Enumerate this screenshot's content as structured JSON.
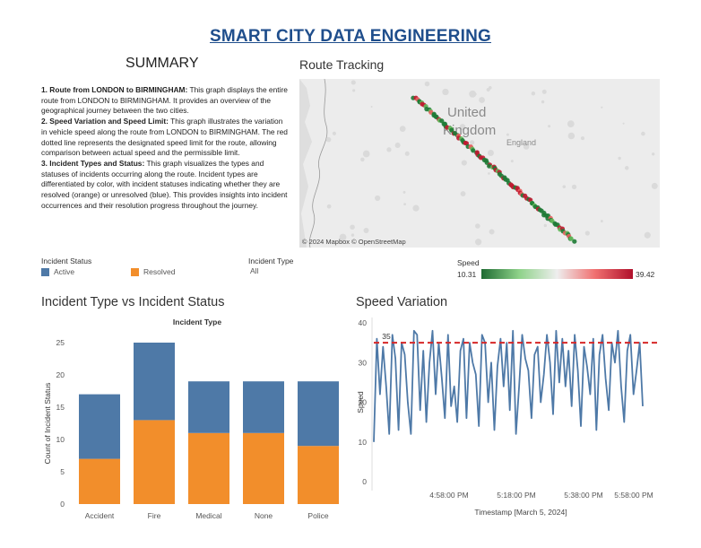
{
  "page": {
    "title": "SMART CITY DATA ENGINEERING"
  },
  "summary": {
    "heading": "SUMMARY",
    "items": [
      {
        "label": "1. Route from LONDON to BIRMINGHAM:",
        "text": " This graph displays the entire route from LONDON to BIRMINGHAM. It provides an overview of the geographical journey between the two cities."
      },
      {
        "label": "2. Speed Variation and Speed Limit:",
        "text": " This graph illustrates the variation in vehicle speed along the route from LONDON to BIRMINGHAM. The red dotted line represents the designated speed limit for the route, allowing comparison between actual speed and the permissible limit."
      },
      {
        "label": "3. Incident Types and Status:",
        "text": " This graph visualizes the types and statuses of incidents occurring along the route. Incident types are differentiated by color, with incident statuses indicating whether they are resolved (orange) or unresolved (blue). This provides insights into incident occurrences and their resolution progress throughout the journey."
      }
    ]
  },
  "route_tracking": {
    "title": "Route Tracking",
    "labels": {
      "country_line1": "United",
      "country_line2": "Kingdom",
      "region": "England"
    },
    "attribution": "© 2024 Mapbox © OpenStreetMap",
    "colors": {
      "low": "#1e7a35",
      "high": "#c01a30",
      "land": "#ececec",
      "border": "#9a9a9a"
    }
  },
  "filters": {
    "incident_status": {
      "title": "Incident Status",
      "items": [
        {
          "label": "Active",
          "color": "#4e79a7"
        },
        {
          "label": "Resolved",
          "color": "#f28e2b"
        }
      ]
    },
    "incident_type": {
      "title": "Incident Type",
      "value": "All"
    },
    "speed": {
      "title": "Speed",
      "min": "10.31",
      "max": "39.42"
    }
  },
  "chart_data": [
    {
      "type": "bar",
      "stacked": true,
      "title": "Incident Type vs Incident Status",
      "top_label": "Incident Type",
      "ylabel": "Count of Incident Status",
      "categories": [
        "Accident",
        "Fire",
        "Medical",
        "None",
        "Police"
      ],
      "series": [
        {
          "name": "Resolved",
          "color": "#f28e2b",
          "values": [
            7,
            13,
            11,
            11,
            9
          ]
        },
        {
          "name": "Active",
          "color": "#4e79a7",
          "values": [
            10,
            12,
            8,
            8,
            10
          ]
        }
      ],
      "ylim": [
        0,
        25
      ],
      "yticks": [
        0,
        5,
        10,
        15,
        20,
        25
      ],
      "grid": false
    },
    {
      "type": "line",
      "title": "Speed Variation",
      "xlabel": "Timestamp [March 5, 2024]",
      "ylabel": "Speed",
      "ylim": [
        0,
        40
      ],
      "yticks": [
        0,
        10,
        20,
        30,
        40
      ],
      "xticks": [
        "4:58:00 PM",
        "5:18:00 PM",
        "5:38:00 PM",
        "5:58:00 PM"
      ],
      "speed_limit": {
        "value": 35,
        "label": "35",
        "color": "#d62728"
      },
      "color": "#4e79a7",
      "values": [
        10,
        36,
        22,
        34,
        24,
        12,
        37,
        31,
        13,
        35,
        32,
        20,
        12,
        38,
        37,
        18,
        33,
        15,
        30,
        38,
        22,
        35,
        26,
        16,
        37,
        19,
        24,
        15,
        33,
        36,
        16,
        35,
        30,
        27,
        14,
        37,
        35,
        20,
        30,
        13,
        29,
        36,
        24,
        35,
        18,
        38,
        12,
        24,
        37,
        31,
        28,
        16,
        32,
        34,
        20,
        27,
        37,
        30,
        17,
        38,
        25,
        36,
        24,
        33,
        19,
        37,
        28,
        14,
        34,
        29,
        22,
        36,
        13,
        32,
        37,
        26,
        18,
        35,
        30,
        38,
        24,
        15,
        33,
        37,
        22,
        28,
        35,
        19
      ]
    }
  ]
}
